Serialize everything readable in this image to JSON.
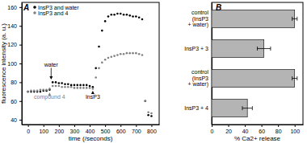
{
  "chart_data": [
    {
      "type": "scatter",
      "title": "A",
      "x_label": "time (/seconds)",
      "y_label": "fluorescence intensity (a. u.)",
      "x": [
        0,
        20,
        40,
        60,
        80,
        100,
        120,
        140,
        160,
        180,
        200,
        220,
        240,
        260,
        280,
        300,
        320,
        340,
        360,
        380,
        400,
        420,
        440,
        460,
        480,
        500,
        520,
        540,
        560,
        580,
        600,
        620,
        640,
        660,
        680,
        700,
        720,
        740,
        760,
        780,
        800
      ],
      "series": [
        {
          "name": "InsP3 and water",
          "color": "#000000",
          "marker": "circle",
          "values": [
            70,
            70,
            70,
            70,
            70,
            71,
            71,
            72,
            80,
            80,
            79,
            79,
            78,
            78,
            77,
            77,
            77,
            77,
            77,
            77,
            76,
            75,
            95,
            118,
            135,
            145,
            150,
            152,
            152,
            153,
            153,
            152,
            152,
            151,
            150,
            150,
            149,
            147,
            60,
            45,
            44
          ]
        },
        {
          "name": "InsP3 and 4",
          "color": "#808080",
          "marker": "circle",
          "values": [
            70,
            71,
            71,
            71,
            72,
            72,
            72,
            73,
            76,
            76,
            76,
            75,
            75,
            75,
            75,
            74,
            74,
            74,
            74,
            74,
            74,
            73,
            85,
            95,
            101,
            104,
            106,
            107,
            108,
            109,
            110,
            110,
            111,
            111,
            111,
            111,
            110,
            109,
            60,
            48,
            47
          ]
        }
      ],
      "xlim": [
        -40,
        850
      ],
      "xticks": [
        0,
        100,
        200,
        300,
        400,
        500,
        600,
        700,
        800
      ],
      "ylim": [
        35,
        165
      ],
      "yticks": [
        40,
        60,
        80,
        100,
        120,
        140,
        160
      ],
      "legend": "upper left",
      "annotations": [
        {
          "text": "water",
          "x": 150,
          "y": 83,
          "label_y": 97,
          "color": "#000000"
        },
        {
          "text": "compound 4",
          "x": 140,
          "y": 69,
          "label_y": 62,
          "color": "#808080"
        },
        {
          "text": "InsP3",
          "x": 420,
          "y": 71,
          "label_y": 62,
          "color": "#000000"
        }
      ]
    },
    {
      "type": "bar",
      "title": "B",
      "orientation": "horizontal",
      "y_label": "% Ca2+ release",
      "categories": [
        "control\n(InsP3\n+ water)",
        "InsP3 + 3",
        "control\n(InsP3\n+ water)",
        "InsP3 + 4"
      ],
      "values": [
        100,
        63,
        100,
        43
      ],
      "errors": [
        3,
        8,
        3,
        6
      ],
      "color": "#b4b4b4",
      "ylim": [
        0,
        110
      ],
      "yticks": [
        0,
        20,
        40,
        60,
        80,
        100
      ]
    }
  ]
}
